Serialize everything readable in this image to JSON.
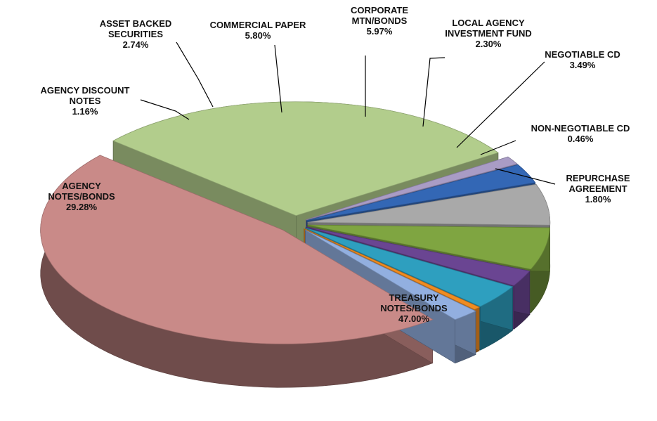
{
  "chart_data": {
    "type": "pie",
    "style": "3d-exploded",
    "title": "",
    "slices": [
      {
        "name_lines": [
          "TREASURY",
          "NOTES/BONDS"
        ],
        "value_label": "47.00%",
        "value": 47.0,
        "color": "#c98a88"
      },
      {
        "name_lines": [
          "AGENCY",
          "NOTES/BONDS"
        ],
        "value_label": "29.28%",
        "value": 29.28,
        "color": "#b2cd8c"
      },
      {
        "name_lines": [
          "AGENCY DISCOUNT",
          "NOTES"
        ],
        "value_label": "1.16%",
        "value": 1.16,
        "color": "#a99cc5"
      },
      {
        "name_lines": [
          "ASSET BACKED",
          "SECURITIES"
        ],
        "value_label": "2.74%",
        "value": 2.74,
        "color": "#3367b5"
      },
      {
        "name_lines": [
          "COMMERCIAL PAPER"
        ],
        "value_label": "5.80%",
        "value": 5.8,
        "color": "#a9a9a9"
      },
      {
        "name_lines": [
          "CORPORATE",
          "MTN/BONDS"
        ],
        "value_label": "5.97%",
        "value": 5.97,
        "color": "#7fa541"
      },
      {
        "name_lines": [
          "LOCAL AGENCY",
          "INVESTMENT FUND"
        ],
        "value_label": "2.30%",
        "value": 2.3,
        "color": "#6a4592"
      },
      {
        "name_lines": [
          "NEGOTIABLE CD"
        ],
        "value_label": "3.49%",
        "value": 3.49,
        "color": "#2e9fbf"
      },
      {
        "name_lines": [
          "NON-NEGOTIABLE CD"
        ],
        "value_label": "0.46%",
        "value": 0.46,
        "color": "#f08c22"
      },
      {
        "name_lines": [
          "REPURCHASE",
          "AGREEMENT"
        ],
        "value_label": "1.80%",
        "value": 1.8,
        "color": "#92afe0"
      }
    ]
  }
}
